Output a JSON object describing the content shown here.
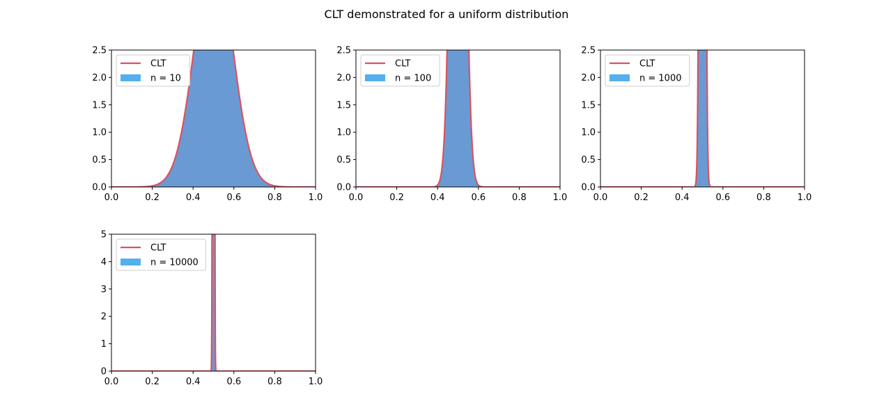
{
  "title": "CLT demonstrated for a uniform distribution",
  "colors": {
    "histogram_fill": "#6a9ad3",
    "histogram_legend": "#52b0ee",
    "clt_curve": "#d9535f",
    "axes": "#000000",
    "legend_border": "#cccccc"
  },
  "chart_data": [
    {
      "type": "area",
      "xlim": [
        0,
        1
      ],
      "ylim": [
        0,
        2.5
      ],
      "xticks": [
        "0.0",
        "0.2",
        "0.4",
        "0.6",
        "0.8",
        "1.0"
      ],
      "yticks": [
        "0.0",
        "0.5",
        "1.0",
        "1.5",
        "2.0",
        "2.5"
      ],
      "legend_position": "top-left",
      "series": [
        {
          "name": "CLT",
          "kind": "normal-curve",
          "mean": 0.5,
          "std": 0.0913
        },
        {
          "name": "n = 10",
          "kind": "histogram",
          "mean": 0.5,
          "std": 0.0913
        }
      ]
    },
    {
      "type": "area",
      "xlim": [
        0,
        1
      ],
      "ylim": [
        0,
        2.5
      ],
      "xticks": [
        "0.0",
        "0.2",
        "0.4",
        "0.6",
        "0.8",
        "1.0"
      ],
      "yticks": [
        "0.0",
        "0.5",
        "1.0",
        "1.5",
        "2.0",
        "2.5"
      ],
      "legend_position": "top-left",
      "series": [
        {
          "name": "CLT",
          "kind": "normal-curve",
          "mean": 0.5,
          "std": 0.0289
        },
        {
          "name": "n = 100",
          "kind": "histogram",
          "mean": 0.5,
          "std": 0.0289
        }
      ]
    },
    {
      "type": "area",
      "xlim": [
        0,
        1
      ],
      "ylim": [
        0,
        2.5
      ],
      "xticks": [
        "0.0",
        "0.2",
        "0.4",
        "0.6",
        "0.8",
        "1.0"
      ],
      "yticks": [
        "0.0",
        "0.5",
        "1.0",
        "1.5",
        "2.0",
        "2.5"
      ],
      "legend_position": "top-left",
      "series": [
        {
          "name": "CLT",
          "kind": "normal-curve",
          "mean": 0.5,
          "std": 0.00913
        },
        {
          "name": "n = 1000",
          "kind": "histogram",
          "mean": 0.5,
          "std": 0.00913
        }
      ]
    },
    {
      "type": "area",
      "xlim": [
        0,
        1
      ],
      "ylim": [
        0,
        5
      ],
      "xticks": [
        "0.0",
        "0.2",
        "0.4",
        "0.6",
        "0.8",
        "1.0"
      ],
      "yticks": [
        "0",
        "1",
        "2",
        "3",
        "4",
        "5"
      ],
      "legend_position": "top-left",
      "series": [
        {
          "name": "CLT",
          "kind": "normal-curve",
          "mean": 0.5,
          "std": 0.00289
        },
        {
          "name": "n = 10000",
          "kind": "histogram",
          "mean": 0.5,
          "std": 0.00289
        }
      ]
    }
  ]
}
